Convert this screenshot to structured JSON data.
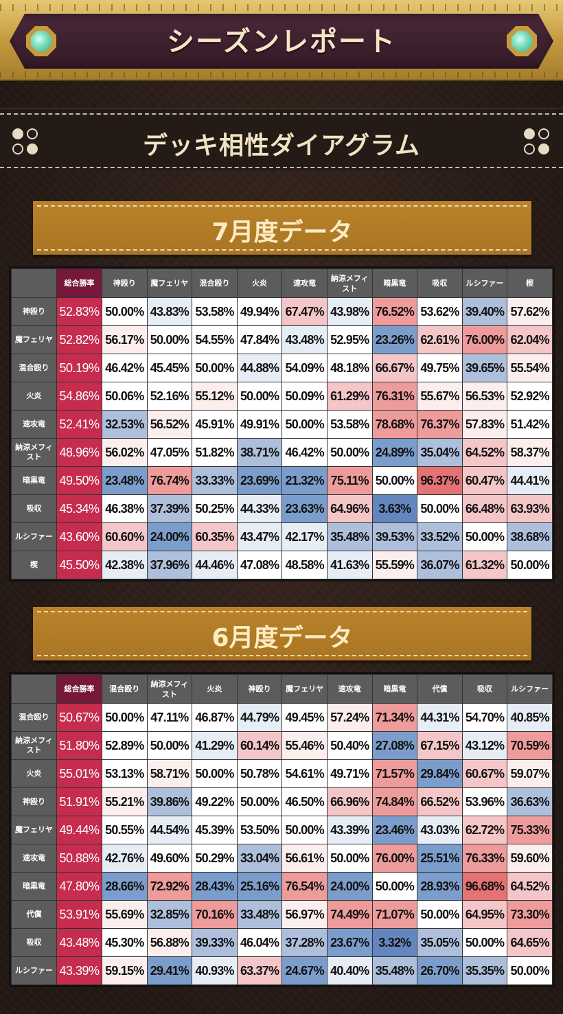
{
  "header": {
    "title": "シーズンレポート"
  },
  "section": {
    "title": "デッキ相性ダイアグラム"
  },
  "colors": {
    "total_header": "#76183a",
    "total_cell": "#c52c4e",
    "header_gray": "#5c5c5c",
    "strong_red": "#e57373",
    "red": "#ee9b9b",
    "light_red": "#f4c6c8",
    "faint_red": "#fdeeee",
    "neutral": "#ffffff",
    "faint_blue": "#e6edf5",
    "light_blue": "#aebfdc",
    "blue": "#7b9dcb",
    "strong_blue": "#6486bf"
  },
  "tables": [
    {
      "label": "7月度データ",
      "total_label": "総合勝率",
      "columns": [
        "神殴り",
        "魔フェリヤ",
        "混合殴り",
        "火炎",
        "速攻竜",
        "納涼メフィスト",
        "暗黒竜",
        "吸収",
        "ルシファー",
        "楔"
      ],
      "rows": [
        {
          "name": "神殴り",
          "total": "52.83%",
          "values": [
            "50.00%",
            "43.83%",
            "53.58%",
            "49.94%",
            "67.47%",
            "43.98%",
            "76.52%",
            "53.62%",
            "39.40%",
            "57.62%"
          ]
        },
        {
          "name": "魔フェリヤ",
          "total": "52.82%",
          "values": [
            "56.17%",
            "50.00%",
            "54.55%",
            "47.84%",
            "43.48%",
            "52.95%",
            "23.26%",
            "62.61%",
            "76.00%",
            "62.04%"
          ]
        },
        {
          "name": "混合殴り",
          "total": "50.19%",
          "values": [
            "46.42%",
            "45.45%",
            "50.00%",
            "44.88%",
            "54.09%",
            "48.18%",
            "66.67%",
            "49.75%",
            "39.65%",
            "55.54%"
          ]
        },
        {
          "name": "火炎",
          "total": "54.86%",
          "values": [
            "50.06%",
            "52.16%",
            "55.12%",
            "50.00%",
            "50.09%",
            "61.29%",
            "76.31%",
            "55.67%",
            "56.53%",
            "52.92%"
          ]
        },
        {
          "name": "速攻竜",
          "total": "52.41%",
          "values": [
            "32.53%",
            "56.52%",
            "45.91%",
            "49.91%",
            "50.00%",
            "53.58%",
            "78.68%",
            "76.37%",
            "57.83%",
            "51.42%"
          ]
        },
        {
          "name": "納涼メフィスト",
          "total": "48.96%",
          "values": [
            "56.02%",
            "47.05%",
            "51.82%",
            "38.71%",
            "46.42%",
            "50.00%",
            "24.89%",
            "35.04%",
            "64.52%",
            "58.37%"
          ]
        },
        {
          "name": "暗黒竜",
          "total": "49.50%",
          "values": [
            "23.48%",
            "76.74%",
            "33.33%",
            "23.69%",
            "21.32%",
            "75.11%",
            "50.00%",
            "96.37%",
            "60.47%",
            "44.41%"
          ]
        },
        {
          "name": "吸収",
          "total": "45.34%",
          "values": [
            "46.38%",
            "37.39%",
            "50.25%",
            "44.33%",
            "23.63%",
            "64.96%",
            "3.63%",
            "50.00%",
            "66.48%",
            "63.93%"
          ]
        },
        {
          "name": "ルシファー",
          "total": "43.60%",
          "values": [
            "60.60%",
            "24.00%",
            "60.35%",
            "43.47%",
            "42.17%",
            "35.48%",
            "39.53%",
            "33.52%",
            "50.00%",
            "38.68%"
          ]
        },
        {
          "name": "楔",
          "total": "45.50%",
          "values": [
            "42.38%",
            "37.96%",
            "44.46%",
            "47.08%",
            "48.58%",
            "41.63%",
            "55.59%",
            "36.07%",
            "61.32%",
            "50.00%"
          ]
        }
      ]
    },
    {
      "label": "6月度データ",
      "total_label": "総合勝率",
      "columns": [
        "混合殴り",
        "納涼メフィスト",
        "火炎",
        "神殴り",
        "魔フェリヤ",
        "速攻竜",
        "暗黒竜",
        "代償",
        "吸収",
        "ルシファー"
      ],
      "rows": [
        {
          "name": "混合殴り",
          "total": "50.67%",
          "values": [
            "50.00%",
            "47.11%",
            "46.87%",
            "44.79%",
            "49.45%",
            "57.24%",
            "71.34%",
            "44.31%",
            "54.70%",
            "40.85%"
          ]
        },
        {
          "name": "納涼メフィスト",
          "total": "51.80%",
          "values": [
            "52.89%",
            "50.00%",
            "41.29%",
            "60.14%",
            "55.46%",
            "50.40%",
            "27.08%",
            "67.15%",
            "43.12%",
            "70.59%"
          ]
        },
        {
          "name": "火炎",
          "total": "55.01%",
          "values": [
            "53.13%",
            "58.71%",
            "50.00%",
            "50.78%",
            "54.61%",
            "49.71%",
            "71.57%",
            "29.84%",
            "60.67%",
            "59.07%"
          ]
        },
        {
          "name": "神殴り",
          "total": "51.91%",
          "values": [
            "55.21%",
            "39.86%",
            "49.22%",
            "50.00%",
            "46.50%",
            "66.96%",
            "74.84%",
            "66.52%",
            "53.96%",
            "36.63%"
          ]
        },
        {
          "name": "魔フェリヤ",
          "total": "49.44%",
          "values": [
            "50.55%",
            "44.54%",
            "45.39%",
            "53.50%",
            "50.00%",
            "43.39%",
            "23.46%",
            "43.03%",
            "62.72%",
            "75.33%"
          ]
        },
        {
          "name": "速攻竜",
          "total": "50.88%",
          "values": [
            "42.76%",
            "49.60%",
            "50.29%",
            "33.04%",
            "56.61%",
            "50.00%",
            "76.00%",
            "25.51%",
            "76.33%",
            "59.60%"
          ]
        },
        {
          "name": "暗黒竜",
          "total": "47.80%",
          "values": [
            "28.66%",
            "72.92%",
            "28.43%",
            "25.16%",
            "76.54%",
            "24.00%",
            "50.00%",
            "28.93%",
            "96.68%",
            "64.52%"
          ]
        },
        {
          "name": "代償",
          "total": "53.91%",
          "values": [
            "55.69%",
            "32.85%",
            "70.16%",
            "33.48%",
            "56.97%",
            "74.49%",
            "71.07%",
            "50.00%",
            "64.95%",
            "73.30%"
          ]
        },
        {
          "name": "吸収",
          "total": "43.48%",
          "values": [
            "45.30%",
            "56.88%",
            "39.33%",
            "46.04%",
            "37.28%",
            "23.67%",
            "3.32%",
            "35.05%",
            "50.00%",
            "64.65%"
          ]
        },
        {
          "name": "ルシファー",
          "total": "43.39%",
          "values": [
            "59.15%",
            "29.41%",
            "40.93%",
            "63.37%",
            "24.67%",
            "40.40%",
            "35.48%",
            "26.70%",
            "35.35%",
            "50.00%"
          ]
        }
      ]
    }
  ]
}
